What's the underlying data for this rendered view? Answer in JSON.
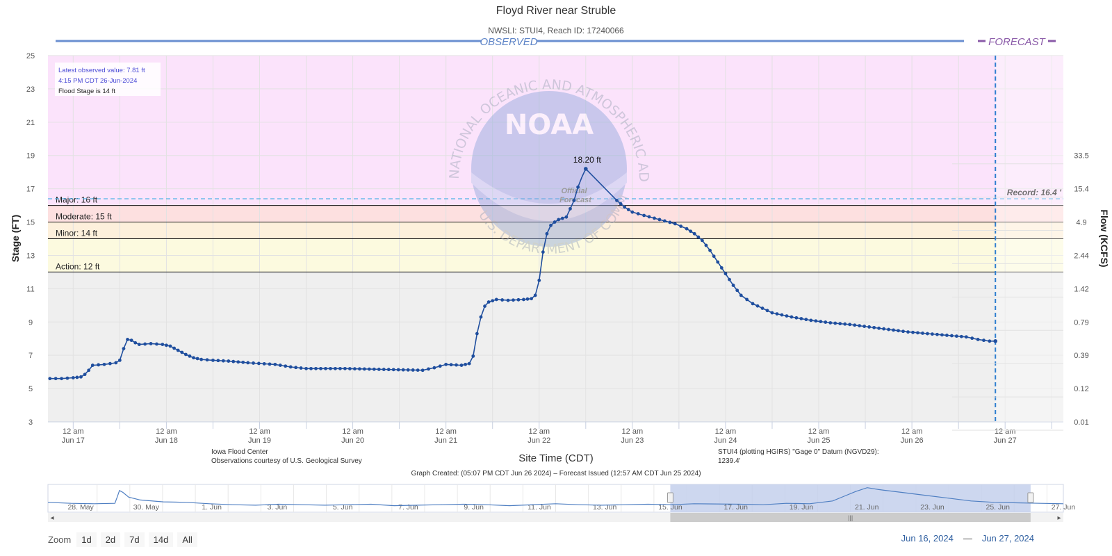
{
  "header": {
    "title": "Floyd River near Struble",
    "subtitle": "NWSLI: STUI4, Reach ID: 17240066"
  },
  "chart_data": {
    "type": "line",
    "title": "Floyd River near Struble",
    "subtitle": "NWSLI: STUI4, Reach ID: 17240066",
    "xlabel": "Site Time (CDT)",
    "ylabel": "Stage (FT)",
    "y2label": "Flow (KCFS)",
    "ylim": [
      3,
      25
    ],
    "yticks": [
      3,
      5,
      7,
      9,
      11,
      13,
      15,
      17,
      19,
      21,
      23,
      25
    ],
    "xlim_hours": [
      -6.5,
      255
    ],
    "xticks": [
      {
        "h": 0,
        "l1": "12 am",
        "l2": "Jun 17"
      },
      {
        "h": 24,
        "l1": "12 am",
        "l2": "Jun 18"
      },
      {
        "h": 48,
        "l1": "12 am",
        "l2": "Jun 19"
      },
      {
        "h": 72,
        "l1": "12 am",
        "l2": "Jun 20"
      },
      {
        "h": 96,
        "l1": "12 am",
        "l2": "Jun 21"
      },
      {
        "h": 120,
        "l1": "12 am",
        "l2": "Jun 22"
      },
      {
        "h": 144,
        "l1": "12 am",
        "l2": "Jun 23"
      },
      {
        "h": 168,
        "l1": "12 am",
        "l2": "Jun 24"
      },
      {
        "h": 192,
        "l1": "12 am",
        "l2": "Jun 25"
      },
      {
        "h": 216,
        "l1": "12 am",
        "l2": "Jun 26"
      },
      {
        "h": 240,
        "l1": "12 am",
        "l2": "Jun 27"
      }
    ],
    "flow_ticks": [
      {
        "stage": 19,
        "label": "33.5"
      },
      {
        "stage": 17,
        "label": "15.4"
      },
      {
        "stage": 15,
        "label": "4.9"
      },
      {
        "stage": 13,
        "label": "2.44"
      },
      {
        "stage": 11,
        "label": "1.42"
      },
      {
        "stage": 9,
        "label": "0.79"
      },
      {
        "stage": 7,
        "label": "0.39"
      },
      {
        "stage": 5,
        "label": "0.12"
      },
      {
        "stage": 3,
        "label": "0.01"
      }
    ],
    "thresholds": [
      {
        "name": "Major",
        "label": "Major: 16 ft",
        "value": 16,
        "color": "#fbe3fb"
      },
      {
        "name": "Moderate",
        "label": "Moderate: 15 ft",
        "value": 15,
        "color": "#fde0e0"
      },
      {
        "name": "Minor",
        "label": "Minor: 14 ft",
        "value": 14,
        "color": "#fdf0dc"
      },
      {
        "name": "Action",
        "label": "Action: 12 ft",
        "value": 12,
        "color": "#fcfadf"
      }
    ],
    "below_action_color": "#efefef",
    "record": {
      "label": "Record: 16.4 '",
      "value": 16.4
    },
    "observed_label": "OBSERVED",
    "forecast_label": "FORECAST",
    "forecast_line_h": 237.5,
    "peak": {
      "h": 136,
      "value": 18.2,
      "label": "18.20 ft"
    },
    "info_box": {
      "latest": "Latest observed value: 7.81 ft",
      "time": "4:15 PM CDT 26-Jun-2024",
      "flood": "Flood Stage is 14 ft"
    },
    "watermark": {
      "logo": "NOAA",
      "ring_top": "NATIONAL OCEANIC AND ATMOSPHERIC ADMINISTRATION",
      "ring_bottom": "U.S. DEPARTMENT OF COMMERCE",
      "stamp": [
        "Official",
        "Forecast"
      ]
    },
    "footer": {
      "left1": "Iowa Flood Center",
      "left2": "Observations courtesy of U.S. Geological Survey",
      "right1": "STUI4 (plotting HGIRS) \"Gage 0\" Datum (NGVD29):",
      "right2": "1239.4'",
      "created": "Graph Created: (05:07 PM CDT Jun 26 2024) – Forecast Issued (12:57 AM CDT Jun 25 2024)"
    },
    "observed_series": {
      "name": "Observed stage",
      "color": "#1f4e9e",
      "points": [
        [
          -6,
          5.6
        ],
        [
          -3,
          5.6
        ],
        [
          0,
          5.65
        ],
        [
          2,
          5.7
        ],
        [
          3,
          5.85
        ],
        [
          4,
          6.1
        ],
        [
          5,
          6.4
        ],
        [
          8,
          6.45
        ],
        [
          11,
          6.55
        ],
        [
          12,
          6.7
        ],
        [
          13,
          7.4
        ],
        [
          14,
          7.95
        ],
        [
          15,
          7.9
        ],
        [
          16,
          7.75
        ],
        [
          17,
          7.65
        ],
        [
          20,
          7.7
        ],
        [
          23,
          7.65
        ],
        [
          25,
          7.55
        ],
        [
          27,
          7.3
        ],
        [
          29,
          7.05
        ],
        [
          31,
          6.85
        ],
        [
          33,
          6.75
        ],
        [
          36,
          6.7
        ],
        [
          40,
          6.65
        ],
        [
          45,
          6.55
        ],
        [
          52,
          6.45
        ],
        [
          56,
          6.3
        ],
        [
          60,
          6.2
        ],
        [
          70,
          6.2
        ],
        [
          80,
          6.15
        ],
        [
          90,
          6.1
        ],
        [
          93,
          6.25
        ],
        [
          96,
          6.45
        ],
        [
          100,
          6.4
        ],
        [
          102,
          6.5
        ],
        [
          103,
          6.95
        ],
        [
          104,
          8.3
        ],
        [
          105,
          9.3
        ],
        [
          106,
          9.95
        ],
        [
          107,
          10.2
        ],
        [
          109,
          10.35
        ],
        [
          112,
          10.3
        ],
        [
          116,
          10.35
        ],
        [
          118,
          10.4
        ],
        [
          119,
          10.6
        ],
        [
          120,
          11.5
        ],
        [
          121,
          13.2
        ],
        [
          122,
          14.3
        ],
        [
          123,
          14.8
        ],
        [
          124,
          15.0
        ],
        [
          125,
          15.15
        ],
        [
          127,
          15.3
        ],
        [
          128,
          15.8
        ],
        [
          129,
          16.3
        ],
        [
          130,
          17.1
        ],
        [
          131,
          17.7
        ]
      ]
    },
    "forecast_series": {
      "name": "Forecast stage",
      "color": "#1f4e9e",
      "points": [
        [
          132,
          18.2
        ],
        [
          140,
          16.3
        ],
        [
          142,
          15.9
        ],
        [
          144,
          15.6
        ],
        [
          147,
          15.4
        ],
        [
          151,
          15.15
        ],
        [
          155,
          14.9
        ],
        [
          158,
          14.6
        ],
        [
          160,
          14.3
        ],
        [
          162,
          13.9
        ],
        [
          164,
          13.3
        ],
        [
          166,
          12.6
        ],
        [
          168,
          11.9
        ],
        [
          170,
          11.2
        ],
        [
          172,
          10.6
        ],
        [
          175,
          10.1
        ],
        [
          180,
          9.55
        ],
        [
          185,
          9.3
        ],
        [
          190,
          9.1
        ],
        [
          195,
          8.95
        ],
        [
          200,
          8.85
        ],
        [
          205,
          8.7
        ],
        [
          210,
          8.55
        ],
        [
          215,
          8.4
        ],
        [
          220,
          8.3
        ],
        [
          225,
          8.2
        ],
        [
          230,
          8.1
        ],
        [
          233,
          7.95
        ],
        [
          236,
          7.85
        ],
        [
          237.5,
          7.85
        ]
      ]
    },
    "navigator": {
      "labels": [
        "28. May",
        "30. May",
        "1. Jun",
        "3. Jun",
        "5. Jun",
        "7. Jun",
        "9. Jun",
        "11. Jun",
        "13. Jun",
        "15. Jun",
        "17. Jun",
        "19. Jun",
        "21. Jun",
        "23. Jun",
        "25. Jun",
        "27. Jun"
      ],
      "day_range": [
        0,
        31
      ],
      "selected_days": [
        19,
        30
      ],
      "series_days": [
        [
          0,
          1.5
        ],
        [
          2,
          1.3
        ],
        [
          4,
          1.2
        ],
        [
          5.8,
          1.3
        ],
        [
          6,
          2.6
        ],
        [
          6.2,
          4.0
        ],
        [
          6.5,
          3.6
        ],
        [
          7,
          2.6
        ],
        [
          8,
          2.0
        ],
        [
          10,
          1.6
        ],
        [
          12,
          1.5
        ],
        [
          14,
          1.2
        ],
        [
          16,
          1.0
        ],
        [
          18,
          0.9
        ],
        [
          20,
          1.1
        ],
        [
          22,
          1.0
        ],
        [
          24,
          0.9
        ],
        [
          26,
          1.0
        ],
        [
          28,
          1.1
        ],
        [
          30,
          0.8
        ],
        [
          32,
          0.9
        ],
        [
          34,
          1.0
        ],
        [
          36,
          1.1
        ],
        [
          38,
          1.0
        ],
        [
          40,
          0.8
        ],
        [
          44,
          1.2
        ],
        [
          46,
          1.0
        ],
        [
          48,
          0.9
        ],
        [
          50,
          1.0
        ],
        [
          52,
          1.1
        ],
        [
          54,
          1.0
        ],
        [
          56,
          1.2
        ],
        [
          60,
          1.1
        ],
        [
          62,
          1.0
        ],
        [
          64,
          1.3
        ],
        [
          66,
          1.2
        ],
        [
          68,
          1.8
        ],
        [
          69,
          2.8
        ],
        [
          70,
          3.8
        ],
        [
          71,
          4.6
        ],
        [
          72,
          4.2
        ],
        [
          74,
          3.6
        ],
        [
          76,
          3.0
        ],
        [
          78,
          2.4
        ],
        [
          80,
          1.8
        ],
        [
          82,
          1.5
        ],
        [
          84,
          1.4
        ],
        [
          86,
          1.3
        ],
        [
          88,
          1.2
        ]
      ]
    }
  },
  "zoom": {
    "label": "Zoom",
    "buttons": [
      "1d",
      "2d",
      "7d",
      "14d",
      "All"
    ]
  },
  "range": {
    "from": "Jun 16, 2024",
    "sep": "—",
    "to": "Jun 27, 2024"
  }
}
